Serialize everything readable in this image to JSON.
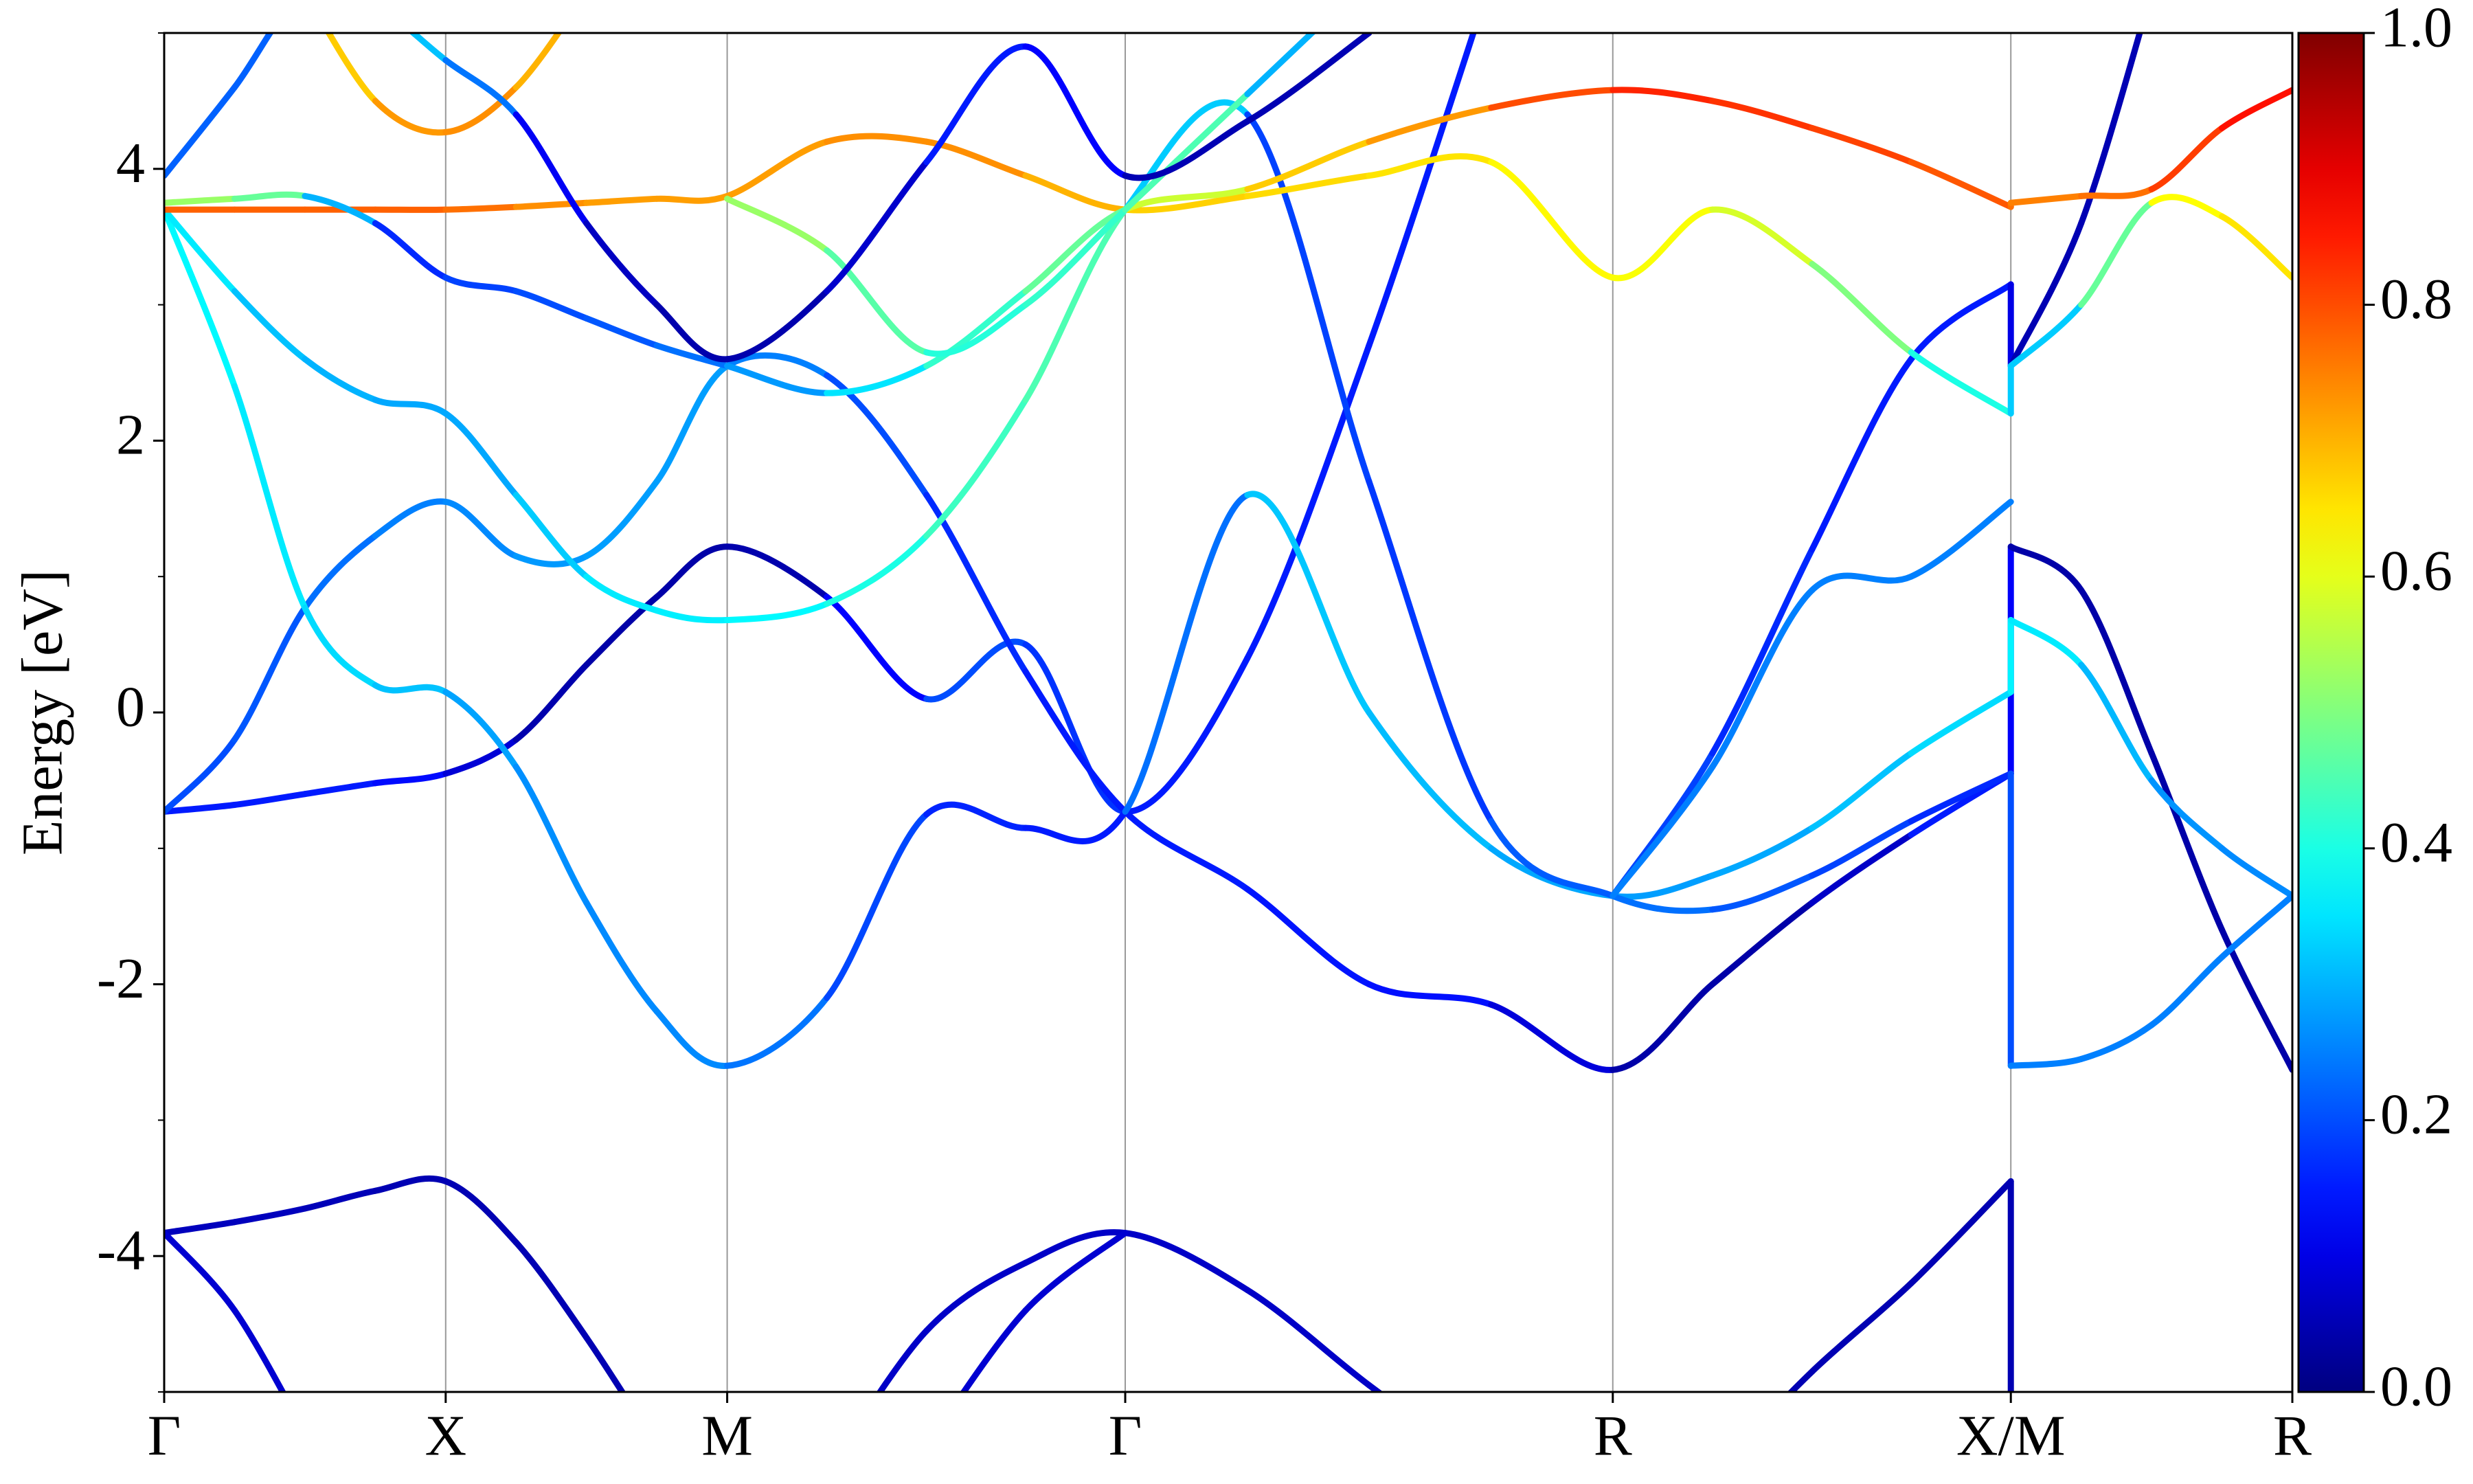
{
  "chart_data": {
    "type": "line",
    "y_label": "Energy [eV]",
    "x": [
      0,
      0.125,
      0.25,
      0.375,
      0.5,
      0.625,
      0.75,
      0.875,
      1.0,
      1.177,
      1.354,
      1.53,
      1.707,
      1.924,
      2.14,
      2.357,
      2.573,
      2.75,
      2.927,
      3.103,
      3.28,
      3.28,
      3.405,
      3.53,
      3.655,
      3.78
    ],
    "xlim": [
      0,
      3.78
    ],
    "xticks": [
      {
        "value": 0,
        "label": "Γ"
      },
      {
        "value": 0.5,
        "label": "X"
      },
      {
        "value": 1.0,
        "label": "M"
      },
      {
        "value": 1.707,
        "label": "Γ"
      },
      {
        "value": 2.573,
        "label": "R"
      },
      {
        "value": 3.28,
        "label": "X/M"
      },
      {
        "value": 3.78,
        "label": "R"
      }
    ],
    "xgrid": true,
    "ylim": [
      -5,
      5
    ],
    "yticks": [
      -4,
      -2,
      0,
      2,
      4
    ],
    "yminorticks": [
      -5,
      -3,
      -1,
      1,
      3,
      5
    ],
    "colorbar": {
      "colormap": "jet",
      "lim": [
        0,
        1
      ],
      "ticks": [
        {
          "value": 0,
          "label": "0.0"
        },
        0.2,
        0.4,
        0.6,
        0.8,
        {
          "value": 1,
          "label": "1.0"
        }
      ]
    },
    "series": [
      {
        "values": [
          -3.83,
          -3.75,
          -3.65,
          -3.52,
          -3.45,
          -3.9,
          -4.6,
          -5.4,
          null,
          -5.6,
          -4.55,
          -4.05,
          -3.83,
          -4.25,
          -4.95,
          -5.6,
          null,
          -5.6,
          -4.85,
          -4.2,
          -3.45,
          -5.5,
          null,
          null,
          null,
          null
        ],
        "weights": [
          0.06,
          0.06,
          0.06,
          0.05,
          0.05,
          0.05,
          0.05,
          0.05,
          null,
          0.07,
          0.07,
          0.07,
          0.07,
          0.07,
          0.07,
          0.07,
          null,
          0.05,
          0.05,
          0.05,
          0.05,
          0.05,
          null,
          null,
          null,
          null
        ]
      },
      {
        "values": [
          -3.83,
          -4.4,
          -5.3,
          null,
          null,
          null,
          null,
          null,
          null,
          null,
          -5.4,
          -4.4,
          -3.83,
          null,
          null,
          null,
          null,
          null,
          null,
          null,
          null,
          null,
          null,
          null,
          null,
          null
        ],
        "weights": [
          0.08,
          0.08,
          0.08,
          null,
          null,
          null,
          null,
          null,
          null,
          null,
          0.08,
          0.08,
          0.08,
          null,
          null,
          null,
          null,
          null,
          null,
          null,
          null,
          null,
          null,
          null,
          null,
          null
        ]
      },
      {
        "values": [
          -0.73,
          -0.68,
          -0.6,
          -0.52,
          -0.45,
          -0.2,
          0.35,
          0.85,
          1.22,
          0.85,
          0.1,
          0.5,
          -0.73,
          0.4,
          2.7,
          5.4,
          null,
          null,
          null,
          null,
          null,
          null,
          null,
          null,
          null,
          null
        ],
        "weights": [
          0.15,
          0.15,
          0.15,
          0.15,
          0.12,
          0.05,
          0.04,
          0.04,
          0.04,
          0.05,
          0.2,
          0.2,
          0.15,
          0.15,
          0.15,
          0.15,
          null,
          null,
          null,
          null,
          null,
          null,
          null,
          null,
          null,
          null
        ]
      },
      {
        "values": [
          -0.73,
          -0.2,
          0.77,
          1.3,
          1.55,
          1.15,
          1.15,
          1.7,
          2.55,
          2.48,
          1.6,
          0.3,
          -0.73,
          -1.3,
          -2.0,
          -2.15,
          -2.63,
          -2.0,
          -1.4,
          -0.9,
          -0.45,
          1.22,
          0.9,
          -0.3,
          -1.6,
          -2.63
        ],
        "weights": [
          0.2,
          0.2,
          0.22,
          0.25,
          0.25,
          0.27,
          0.28,
          0.28,
          0.28,
          0.22,
          0.18,
          0.15,
          0.15,
          0.15,
          0.14,
          0.14,
          0.04,
          0.04,
          0.04,
          0.1,
          0.2,
          0.04,
          0.04,
          0.04,
          0.04,
          0.04
        ]
      },
      {
        "values": [
          3.7,
          2.4,
          0.77,
          0.2,
          0.15,
          -0.4,
          -1.4,
          -2.2,
          -2.6,
          -2.1,
          -0.75,
          -0.85,
          -0.73,
          1.6,
          0.0,
          -1.0,
          -1.35,
          -1.2,
          -0.85,
          -0.3,
          0.15,
          0.68,
          0.35,
          -0.5,
          -1.0,
          -1.35
        ],
        "weights": [
          0.38,
          0.36,
          0.35,
          0.33,
          0.3,
          0.27,
          0.26,
          0.26,
          0.26,
          0.22,
          0.17,
          0.15,
          0.15,
          0.32,
          0.32,
          0.3,
          0.28,
          0.28,
          0.3,
          0.33,
          0.35,
          0.38,
          0.33,
          0.28,
          0.26,
          0.26
        ]
      },
      {
        "values": [
          3.7,
          3.1,
          2.6,
          2.3,
          2.2,
          1.6,
          1.0,
          0.75,
          0.68,
          0.8,
          1.3,
          2.3,
          3.7,
          4.4,
          1.7,
          -0.8,
          -1.35,
          -1.45,
          -1.2,
          -0.8,
          -0.45,
          -2.6,
          -2.55,
          -2.3,
          -1.8,
          -1.35
        ],
        "weights": [
          0.38,
          0.33,
          0.3,
          0.3,
          0.28,
          0.3,
          0.35,
          0.36,
          0.36,
          0.38,
          0.42,
          0.45,
          0.45,
          0.2,
          0.18,
          0.18,
          0.25,
          0.22,
          0.2,
          0.18,
          0.15,
          0.25,
          0.25,
          0.25,
          0.25,
          0.25
        ]
      },
      {
        "values": [
          null,
          null,
          null,
          null,
          null,
          null,
          null,
          null,
          null,
          null,
          null,
          null,
          null,
          null,
          null,
          null,
          -1.35,
          -0.3,
          1.2,
          2.6,
          3.15,
          2.55,
          3.6,
          5.3,
          null,
          null
        ],
        "weights": [
          null,
          null,
          null,
          null,
          null,
          null,
          null,
          null,
          null,
          null,
          null,
          null,
          null,
          null,
          null,
          null,
          0.2,
          0.18,
          0.15,
          0.15,
          0.15,
          0.05,
          0.05,
          0.05,
          null,
          null
        ]
      },
      {
        "values": [
          3.7,
          3.7,
          3.7,
          3.7,
          3.7,
          3.72,
          3.75,
          3.78,
          3.8,
          4.2,
          4.2,
          3.95,
          3.7,
          3.8,
          3.95,
          4.05,
          3.2,
          3.7,
          3.3,
          2.65,
          2.2,
          2.55,
          3.0,
          3.75,
          3.65,
          3.2
        ],
        "weights": [
          0.78,
          0.78,
          0.78,
          0.78,
          0.78,
          0.75,
          0.72,
          0.72,
          0.72,
          0.72,
          0.75,
          0.72,
          0.68,
          0.66,
          0.66,
          0.64,
          0.62,
          0.62,
          0.55,
          0.45,
          0.35,
          0.3,
          0.35,
          0.6,
          0.65,
          0.65
        ]
      },
      {
        "values": [
          3.75,
          3.78,
          3.8,
          3.6,
          3.2,
          3.1,
          2.9,
          2.7,
          2.55,
          2.35,
          2.55,
          3.1,
          3.7,
          3.85,
          4.2,
          4.45,
          4.58,
          4.5,
          4.3,
          4.05,
          3.72,
          3.75,
          3.8,
          3.85,
          4.3,
          4.58
        ],
        "weights": [
          0.55,
          0.5,
          0.45,
          0.15,
          0.18,
          0.2,
          0.2,
          0.22,
          0.25,
          0.3,
          0.4,
          0.45,
          0.5,
          0.65,
          0.7,
          0.75,
          0.85,
          0.83,
          0.82,
          0.8,
          0.78,
          0.75,
          0.75,
          0.78,
          0.85,
          0.87
        ]
      },
      {
        "values": [
          null,
          null,
          5.3,
          4.5,
          4.27,
          4.6,
          5.3,
          null,
          3.78,
          3.4,
          2.65,
          3.0,
          3.7,
          4.55,
          5.4,
          null,
          null,
          null,
          null,
          null,
          null,
          null,
          null,
          null,
          null,
          null
        ],
        "weights": [
          null,
          null,
          0.65,
          0.7,
          0.75,
          0.72,
          0.68,
          null,
          0.55,
          0.5,
          0.42,
          0.4,
          0.45,
          0.45,
          0.15,
          null,
          null,
          null,
          null,
          null,
          null,
          null,
          null,
          null,
          null,
          null
        ]
      },
      {
        "values": [
          3.95,
          4.6,
          5.3,
          5.2,
          4.8,
          4.4,
          3.6,
          3.0,
          2.6,
          3.1,
          4.05,
          4.9,
          3.95,
          4.35,
          5.0,
          null,
          null,
          null,
          null,
          null,
          null,
          null,
          null,
          null,
          null,
          null
        ],
        "weights": [
          0.22,
          0.22,
          0.22,
          0.3,
          0.33,
          0.15,
          0.08,
          0.05,
          0.04,
          0.05,
          0.1,
          0.2,
          0.05,
          0.05,
          0.05,
          null,
          null,
          null,
          null,
          null,
          null,
          null,
          null,
          null,
          null,
          null
        ]
      },
      {
        "values": [
          null,
          null,
          null,
          null,
          null,
          null,
          null,
          null,
          null,
          null,
          null,
          null,
          null,
          null,
          null,
          null,
          -1.35,
          -0.4,
          0.9,
          1.0,
          1.55,
          null,
          null,
          null,
          null,
          null
        ],
        "weights": [
          null,
          null,
          null,
          null,
          null,
          null,
          null,
          null,
          null,
          null,
          null,
          null,
          null,
          null,
          null,
          null,
          0.25,
          0.25,
          0.25,
          0.25,
          0.25,
          null,
          null,
          null,
          null,
          null
        ]
      }
    ]
  }
}
